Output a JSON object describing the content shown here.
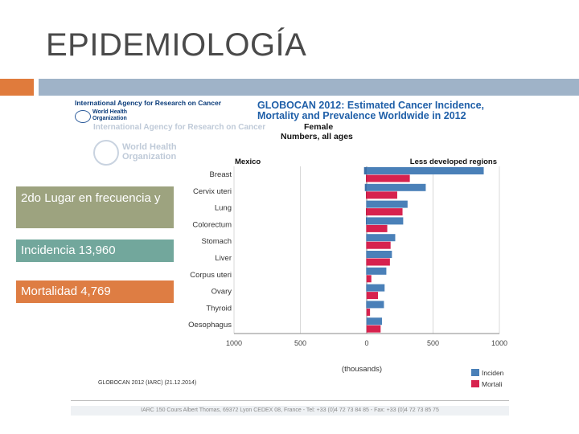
{
  "slide": {
    "title": "EPIDEMIOLOGÍA",
    "boxes": [
      "2do Lugar en frecuencia y",
      "Incidencia 13,960",
      "Mortalidad  4,769"
    ]
  },
  "source": {
    "iarc": "International Agency for Research on Cancer",
    "who": "World Health Organization",
    "globocan_title": "GLOBOCAN 2012: Estimated Cancer Incidence, Mortality and Prevalence Worldwide in 2012",
    "footer_left": "GLOBOCAN 2012 (IARC) (21.12.2014)",
    "footer_bar": "IARC 150 Cours Albert Thomas, 69372 Lyon CEDEX 08, France - Tel: +33 (0)4 72 73 84 85 - Fax: +33 (0)4 72 73 85 75"
  },
  "chart_data": {
    "type": "bar",
    "orientation": "horizontal",
    "subtitle": "Female",
    "subtitle2": "Numbers, all ages",
    "left_panel_title": "Mexico",
    "right_panel_title": "Less developed regions",
    "categories": [
      "Breast",
      "Cervix uteri",
      "Lung",
      "Colorectum",
      "Stomach",
      "Liver",
      "Corpus uteri",
      "Ovary",
      "Thyroid",
      "Oesophagus"
    ],
    "x_ticks": [
      "1000",
      "500",
      "0",
      "500",
      "1000"
    ],
    "xlabel": "(thousands)",
    "xlim": [
      0,
      1000
    ],
    "series": [
      {
        "name": "Incidence",
        "legend": "Inciden",
        "color": "#4a80b8",
        "values": [
          882,
          445,
          308,
          275,
          215,
          190,
          148,
          135,
          130,
          115
        ]
      },
      {
        "name": "Mortality",
        "legend": "Mortali",
        "color": "#d7224e",
        "values": [
          325,
          230,
          270,
          155,
          180,
          175,
          35,
          85,
          25,
          105
        ]
      }
    ],
    "mexico_incidence_small": [
      20,
      14,
      4,
      6,
      4,
      4,
      4,
      4,
      4,
      2
    ],
    "mexico_mortality_small": [
      6,
      6,
      6,
      4,
      4,
      4,
      2,
      2,
      2,
      2
    ]
  }
}
